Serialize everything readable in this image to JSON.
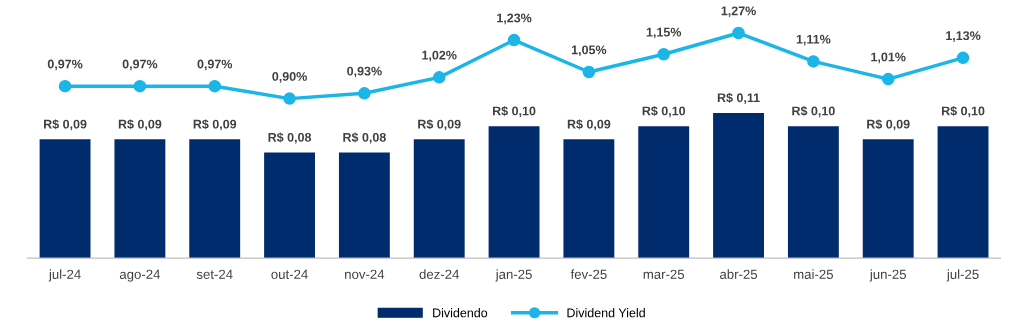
{
  "chart_data": [
    {
      "type": "bar",
      "categories": [
        "jul-24",
        "ago-24",
        "set-24",
        "out-24",
        "nov-24",
        "dez-24",
        "jan-25",
        "fev-25",
        "mar-25",
        "abr-25",
        "mai-25",
        "jun-25",
        "jul-25"
      ],
      "series": [
        {
          "name": "Dividendo",
          "color": "#002c6e",
          "values": [
            0.09,
            0.09,
            0.09,
            0.08,
            0.08,
            0.09,
            0.1,
            0.09,
            0.1,
            0.11,
            0.1,
            0.09,
            0.1
          ],
          "value_labels": [
            "R$ 0,09",
            "R$ 0,09",
            "R$ 0,09",
            "R$ 0,08",
            "R$ 0,08",
            "R$ 0,09",
            "R$ 0,10",
            "R$ 0,09",
            "R$ 0,10",
            "R$ 0,11",
            "R$ 0,10",
            "R$ 0,09",
            "R$ 0,10"
          ]
        }
      ],
      "tick_labels": "x",
      "legend": "bottom"
    },
    {
      "type": "line",
      "categories": [
        null,
        null,
        null,
        null,
        null,
        null,
        null,
        null,
        null,
        null,
        null,
        null,
        null
      ],
      "series": [
        {
          "name": "Dividend Yield",
          "color": "#1cb5e8",
          "values": [
            0.97,
            0.97,
            0.97,
            0.9,
            0.93,
            1.02,
            1.23,
            1.05,
            1.15,
            1.27,
            1.11,
            1.01,
            1.13
          ],
          "value_labels": [
            "0,97%",
            "0,97%",
            "0,97%",
            "0,90%",
            "0,93%",
            "1,02%",
            "1,23%",
            "1,05%",
            "1,15%",
            "1,27%",
            "1,11%",
            "1,01%",
            "1,13%"
          ]
        }
      ],
      "marker": "circle",
      "tick_labels": false,
      "legend": "bottom"
    }
  ]
}
